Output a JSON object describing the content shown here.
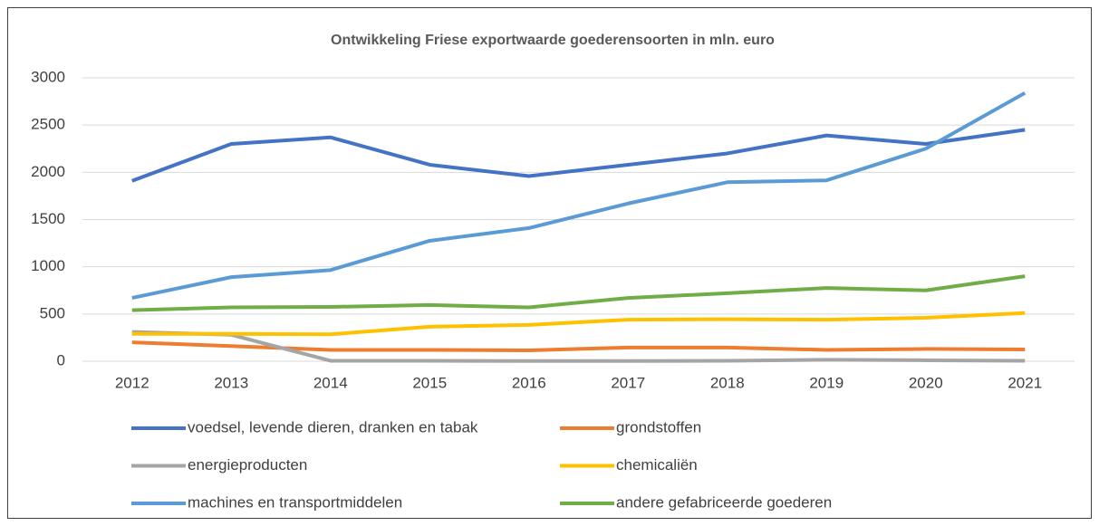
{
  "chart_data": {
    "type": "line",
    "title": "Ontwikkeling Friese exportwaarde goederensoorten in mln. euro",
    "categories": [
      "2012",
      "2013",
      "2014",
      "2015",
      "2016",
      "2017",
      "2018",
      "2019",
      "2020",
      "2021"
    ],
    "series": [
      {
        "name": "voedsel, levende dieren, dranken en tabak",
        "color": "#4472c4",
        "values": [
          1910,
          2300,
          2370,
          2080,
          1960,
          2080,
          2200,
          2390,
          2300,
          2450
        ]
      },
      {
        "name": "grondstoffen",
        "color": "#ed7d31",
        "values": [
          200,
          160,
          120,
          120,
          115,
          145,
          145,
          120,
          130,
          125
        ]
      },
      {
        "name": "energieproducten",
        "color": "#a5a5a5",
        "values": [
          310,
          280,
          5,
          5,
          2,
          2,
          5,
          15,
          10,
          5
        ]
      },
      {
        "name": "chemicaliën",
        "color": "#ffc000",
        "values": [
          290,
          290,
          285,
          365,
          385,
          440,
          445,
          440,
          460,
          510
        ]
      },
      {
        "name": "machines en transportmiddelen",
        "color": "#5b9bd5",
        "values": [
          670,
          890,
          965,
          1275,
          1410,
          1670,
          1895,
          1915,
          2250,
          2840
        ]
      },
      {
        "name": "andere gefabriceerde goederen",
        "color": "#70ad47",
        "values": [
          540,
          570,
          575,
          595,
          570,
          670,
          720,
          775,
          750,
          900
        ]
      }
    ],
    "ylim": [
      0,
      3000
    ],
    "yticks": [
      0,
      500,
      1000,
      1500,
      2000,
      2500,
      3000
    ],
    "grid": true,
    "legend": "bottom"
  }
}
